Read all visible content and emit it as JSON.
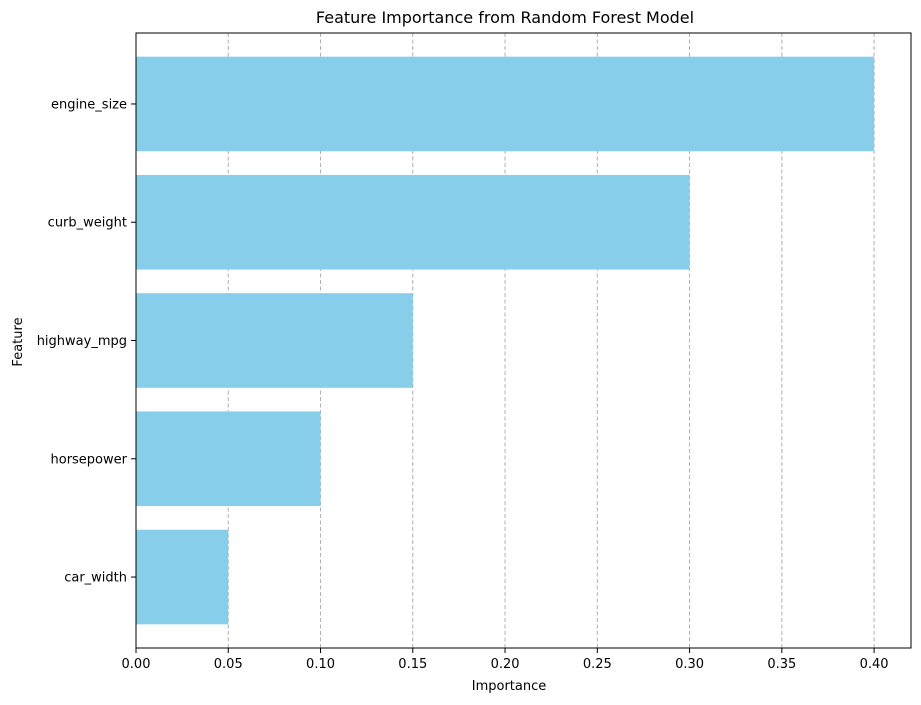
{
  "chart_data": {
    "type": "bar",
    "orientation": "horizontal",
    "title": "Feature Importance from Random Forest Model",
    "xlabel": "Importance",
    "ylabel": "Feature",
    "categories": [
      "engine_size",
      "curb_weight",
      "highway_mpg",
      "horsepower",
      "car_width"
    ],
    "values": [
      0.4,
      0.3,
      0.15,
      0.1,
      0.05
    ],
    "xlim": [
      0.0,
      0.42
    ],
    "xticks": [
      "0.00",
      "0.05",
      "0.10",
      "0.15",
      "0.20",
      "0.25",
      "0.30",
      "0.35",
      "0.40"
    ],
    "grid": "x-axis, dashed",
    "bar_color": "#87CEEB",
    "legend": "none"
  }
}
